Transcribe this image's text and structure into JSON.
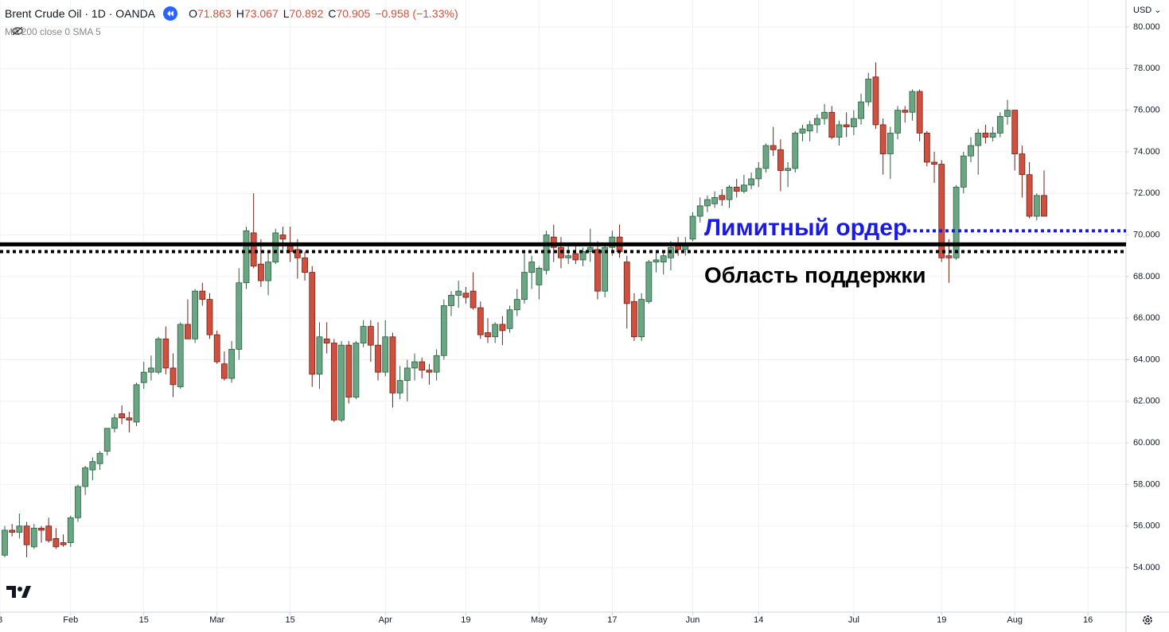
{
  "header": {
    "symbol": "Brent Crude Oil · 1D · OANDA",
    "quote": [
      {
        "label": "O",
        "value": "71.863"
      },
      {
        "label": "H",
        "value": "73.067"
      },
      {
        "label": "L",
        "value": "70.892"
      },
      {
        "label": "C",
        "value": "70.905"
      }
    ],
    "change": "−0.958 (−1.33%)",
    "indicator": "MA 200 close 0 SMA 5",
    "currency": "USD"
  },
  "chart_data": {
    "type": "candlestick",
    "up_color": "#6aa584",
    "down_color": "#d0503f",
    "ylim": [
      51.86,
      81.3
    ],
    "xlim": [
      -0.65,
      153.2
    ],
    "grid": true,
    "yticks": [
      {
        "value": 54,
        "label": "54.000"
      },
      {
        "value": 56,
        "label": "56.000"
      },
      {
        "value": 58,
        "label": "58.000"
      },
      {
        "value": 60,
        "label": "60.000"
      },
      {
        "value": 62,
        "label": "62.000"
      },
      {
        "value": 64,
        "label": "64.000"
      },
      {
        "value": 66,
        "label": "66.000"
      },
      {
        "value": 68,
        "label": "68.000"
      },
      {
        "value": 70,
        "label": "70.000"
      },
      {
        "value": 72,
        "label": "72.000"
      },
      {
        "value": 74,
        "label": "74.000"
      },
      {
        "value": 76,
        "label": "76.000"
      },
      {
        "value": 78,
        "label": "78.000"
      },
      {
        "value": 80,
        "label": "80.000"
      }
    ],
    "xticks": [
      {
        "value": -0.65,
        "label": "8"
      },
      {
        "value": 9,
        "label": "Feb"
      },
      {
        "value": 19,
        "label": "15"
      },
      {
        "value": 29,
        "label": "Mar"
      },
      {
        "value": 39,
        "label": "15"
      },
      {
        "value": 52,
        "label": "Apr"
      },
      {
        "value": 63,
        "label": "19"
      },
      {
        "value": 73,
        "label": "May"
      },
      {
        "value": 83,
        "label": "17"
      },
      {
        "value": 94,
        "label": "Jun"
      },
      {
        "value": 103,
        "label": "14"
      },
      {
        "value": 116,
        "label": "Jul"
      },
      {
        "value": 128,
        "label": "19"
      },
      {
        "value": 138,
        "label": "Aug"
      },
      {
        "value": 148,
        "label": "16"
      }
    ],
    "lines": [
      {
        "value": 69.55,
        "style": "solid",
        "color": "#000000"
      },
      {
        "value": 69.2,
        "style": "dotted",
        "color": "#000000"
      },
      {
        "value": 70.2,
        "style": "dotted",
        "color": "#1a1ae6"
      }
    ],
    "annotations": [
      {
        "text": "Лимитный ордер",
        "color": "#1a1ae6"
      },
      {
        "text": "Область поддержки",
        "color": "#000000"
      }
    ],
    "ohlc": [
      [
        54.6,
        56.0,
        54.5,
        55.8
      ],
      [
        55.8,
        56.1,
        55.5,
        55.7
      ],
      [
        55.7,
        56.6,
        55.4,
        56.0
      ],
      [
        56.0,
        56.2,
        54.5,
        55.1
      ],
      [
        55.0,
        56.1,
        54.9,
        55.9
      ],
      [
        55.9,
        56.0,
        55.2,
        55.8
      ],
      [
        56.0,
        56.4,
        55.2,
        55.3
      ],
      [
        55.4,
        55.9,
        54.9,
        55.0
      ],
      [
        55.2,
        55.6,
        55.0,
        55.1
      ],
      [
        55.2,
        56.5,
        55.0,
        56.4
      ],
      [
        56.4,
        58.0,
        56.2,
        57.9
      ],
      [
        57.9,
        58.9,
        57.5,
        58.8
      ],
      [
        58.7,
        59.3,
        58.2,
        59.1
      ],
      [
        59.0,
        59.6,
        58.7,
        59.5
      ],
      [
        59.6,
        60.7,
        59.4,
        60.7
      ],
      [
        60.7,
        61.4,
        60.5,
        61.2
      ],
      [
        61.4,
        61.8,
        60.9,
        61.2
      ],
      [
        61.2,
        61.5,
        60.5,
        61.1
      ],
      [
        61.0,
        62.9,
        60.8,
        62.8
      ],
      [
        62.9,
        63.9,
        62.6,
        63.4
      ],
      [
        63.4,
        64.2,
        63.0,
        63.6
      ],
      [
        63.4,
        65.1,
        63.3,
        65.0
      ],
      [
        65.0,
        65.6,
        63.3,
        63.6
      ],
      [
        63.6,
        64.3,
        62.2,
        62.8
      ],
      [
        62.7,
        65.8,
        62.6,
        65.7
      ],
      [
        65.7,
        66.9,
        65.0,
        65.0
      ],
      [
        65.0,
        67.4,
        64.8,
        67.3
      ],
      [
        67.3,
        67.7,
        66.6,
        66.9
      ],
      [
        66.9,
        67.2,
        65.0,
        65.2
      ],
      [
        65.2,
        65.4,
        63.8,
        63.9
      ],
      [
        63.8,
        64.4,
        63.0,
        63.1
      ],
      [
        63.1,
        64.9,
        62.9,
        64.5
      ],
      [
        64.5,
        68.4,
        64.0,
        67.7
      ],
      [
        67.7,
        70.4,
        67.4,
        70.2
      ],
      [
        70.1,
        72.0,
        68.4,
        68.5
      ],
      [
        68.6,
        69.8,
        67.5,
        67.8
      ],
      [
        67.8,
        69.2,
        67.1,
        68.7
      ],
      [
        68.7,
        70.3,
        68.6,
        70.1
      ],
      [
        70.0,
        70.4,
        69.3,
        69.8
      ],
      [
        69.6,
        70.4,
        68.7,
        69.2
      ],
      [
        69.3,
        69.8,
        67.9,
        68.9
      ],
      [
        68.9,
        69.2,
        67.8,
        68.2
      ],
      [
        68.2,
        68.5,
        62.7,
        63.3
      ],
      [
        63.3,
        65.8,
        62.6,
        65.1
      ],
      [
        65.0,
        65.8,
        64.3,
        64.8
      ],
      [
        64.8,
        65.0,
        61.0,
        61.1
      ],
      [
        61.1,
        64.9,
        61.0,
        64.7
      ],
      [
        64.7,
        64.9,
        61.9,
        62.2
      ],
      [
        62.2,
        64.9,
        62.1,
        64.8
      ],
      [
        64.8,
        65.9,
        64.6,
        65.6
      ],
      [
        65.6,
        65.9,
        63.9,
        64.7
      ],
      [
        64.7,
        65.8,
        63.0,
        63.4
      ],
      [
        63.4,
        65.9,
        63.2,
        65.1
      ],
      [
        65.1,
        65.3,
        61.7,
        62.4
      ],
      [
        62.4,
        63.7,
        62.1,
        63.0
      ],
      [
        63.0,
        64.0,
        62.0,
        63.6
      ],
      [
        63.6,
        64.3,
        63.0,
        63.9
      ],
      [
        63.9,
        64.1,
        63.1,
        63.5
      ],
      [
        63.5,
        63.8,
        62.8,
        63.4
      ],
      [
        63.4,
        64.5,
        63.0,
        64.2
      ],
      [
        64.2,
        66.9,
        64.0,
        66.6
      ],
      [
        66.6,
        67.3,
        66.1,
        67.1
      ],
      [
        67.1,
        67.8,
        66.5,
        67.3
      ],
      [
        67.2,
        67.5,
        66.7,
        67.0
      ],
      [
        67.3,
        68.2,
        66.4,
        66.5
      ],
      [
        66.5,
        66.8,
        65.0,
        65.2
      ],
      [
        65.3,
        66.0,
        64.8,
        65.1
      ],
      [
        65.1,
        65.8,
        64.8,
        65.7
      ],
      [
        65.7,
        66.1,
        64.7,
        65.4
      ],
      [
        65.5,
        66.6,
        65.3,
        66.4
      ],
      [
        66.4,
        67.4,
        66.1,
        66.9
      ],
      [
        66.9,
        69.2,
        66.7,
        68.2
      ],
      [
        68.2,
        69.0,
        67.4,
        68.7
      ],
      [
        67.6,
        68.5,
        66.9,
        68.4
      ],
      [
        68.3,
        70.2,
        68.1,
        70.0
      ],
      [
        69.9,
        70.5,
        68.7,
        69.4
      ],
      [
        69.4,
        69.9,
        68.4,
        68.9
      ],
      [
        68.9,
        69.5,
        68.6,
        69.0
      ],
      [
        69.1,
        69.5,
        68.6,
        68.8
      ],
      [
        68.8,
        69.4,
        68.5,
        69.2
      ],
      [
        69.2,
        70.3,
        68.7,
        69.4
      ],
      [
        69.3,
        69.7,
        66.9,
        67.3
      ],
      [
        67.3,
        69.6,
        67.0,
        69.4
      ],
      [
        69.4,
        70.2,
        69.0,
        69.9
      ],
      [
        69.9,
        70.5,
        68.9,
        69.2
      ],
      [
        68.7,
        69.0,
        65.5,
        66.7
      ],
      [
        66.8,
        67.2,
        64.9,
        65.1
      ],
      [
        65.1,
        67.2,
        64.9,
        66.9
      ],
      [
        66.8,
        68.8,
        66.7,
        68.7
      ],
      [
        68.7,
        69.2,
        68.2,
        68.8
      ],
      [
        68.7,
        69.2,
        68.1,
        69.0
      ],
      [
        68.9,
        69.7,
        68.3,
        69.4
      ],
      [
        69.5,
        69.9,
        69.0,
        69.3
      ],
      [
        69.3,
        69.9,
        69.0,
        69.6
      ],
      [
        69.8,
        71.1,
        69.7,
        70.9
      ],
      [
        70.9,
        71.8,
        70.6,
        71.4
      ],
      [
        71.4,
        71.9,
        71.1,
        71.7
      ],
      [
        71.5,
        72.1,
        71.3,
        71.8
      ],
      [
        71.9,
        72.2,
        71.4,
        71.7
      ],
      [
        71.7,
        72.4,
        71.3,
        72.3
      ],
      [
        72.3,
        72.7,
        71.8,
        72.1
      ],
      [
        72.1,
        72.9,
        72.0,
        72.4
      ],
      [
        72.4,
        73.0,
        72.2,
        72.7
      ],
      [
        72.7,
        73.5,
        72.3,
        73.2
      ],
      [
        73.2,
        74.4,
        73.0,
        74.3
      ],
      [
        74.3,
        75.2,
        73.8,
        74.1
      ],
      [
        74.1,
        74.6,
        72.1,
        73.1
      ],
      [
        73.1,
        73.5,
        72.3,
        73.2
      ],
      [
        73.2,
        75.0,
        73.0,
        74.9
      ],
      [
        74.9,
        75.3,
        74.5,
        75.1
      ],
      [
        75.0,
        75.5,
        74.5,
        75.3
      ],
      [
        75.3,
        75.8,
        74.9,
        75.6
      ],
      [
        75.6,
        76.3,
        75.3,
        75.9
      ],
      [
        75.9,
        76.2,
        74.6,
        74.7
      ],
      [
        74.7,
        75.5,
        74.3,
        75.3
      ],
      [
        75.3,
        75.9,
        74.7,
        75.2
      ],
      [
        75.2,
        76.0,
        74.8,
        75.6
      ],
      [
        75.6,
        76.8,
        75.3,
        76.4
      ],
      [
        76.4,
        77.8,
        76.2,
        77.5
      ],
      [
        77.6,
        78.3,
        75.1,
        75.3
      ],
      [
        75.3,
        75.6,
        72.9,
        73.9
      ],
      [
        73.9,
        75.2,
        72.7,
        74.9
      ],
      [
        74.9,
        76.2,
        74.6,
        76.0
      ],
      [
        76.0,
        76.2,
        75.4,
        75.9
      ],
      [
        75.9,
        77.0,
        75.5,
        76.9
      ],
      [
        76.9,
        77.0,
        74.5,
        74.9
      ],
      [
        74.9,
        75.0,
        73.3,
        73.5
      ],
      [
        73.5,
        74.0,
        72.5,
        73.4
      ],
      [
        73.4,
        73.6,
        68.7,
        68.9
      ],
      [
        69.0,
        69.8,
        67.7,
        68.9
      ],
      [
        68.9,
        72.4,
        68.8,
        72.3
      ],
      [
        72.3,
        74.0,
        72.0,
        73.8
      ],
      [
        73.8,
        74.7,
        73.5,
        74.3
      ],
      [
        74.3,
        75.1,
        72.9,
        74.9
      ],
      [
        74.9,
        75.3,
        74.4,
        74.7
      ],
      [
        74.7,
        75.2,
        74.5,
        74.9
      ],
      [
        74.9,
        75.9,
        74.7,
        75.7
      ],
      [
        75.7,
        76.5,
        75.3,
        76.0
      ],
      [
        76.0,
        76.0,
        73.1,
        73.9
      ],
      [
        73.9,
        74.3,
        71.8,
        72.9
      ],
      [
        72.9,
        73.5,
        70.8,
        70.9
      ],
      [
        70.9,
        72.0,
        70.7,
        71.9
      ],
      [
        71.9,
        73.1,
        70.9,
        70.9
      ]
    ]
  }
}
